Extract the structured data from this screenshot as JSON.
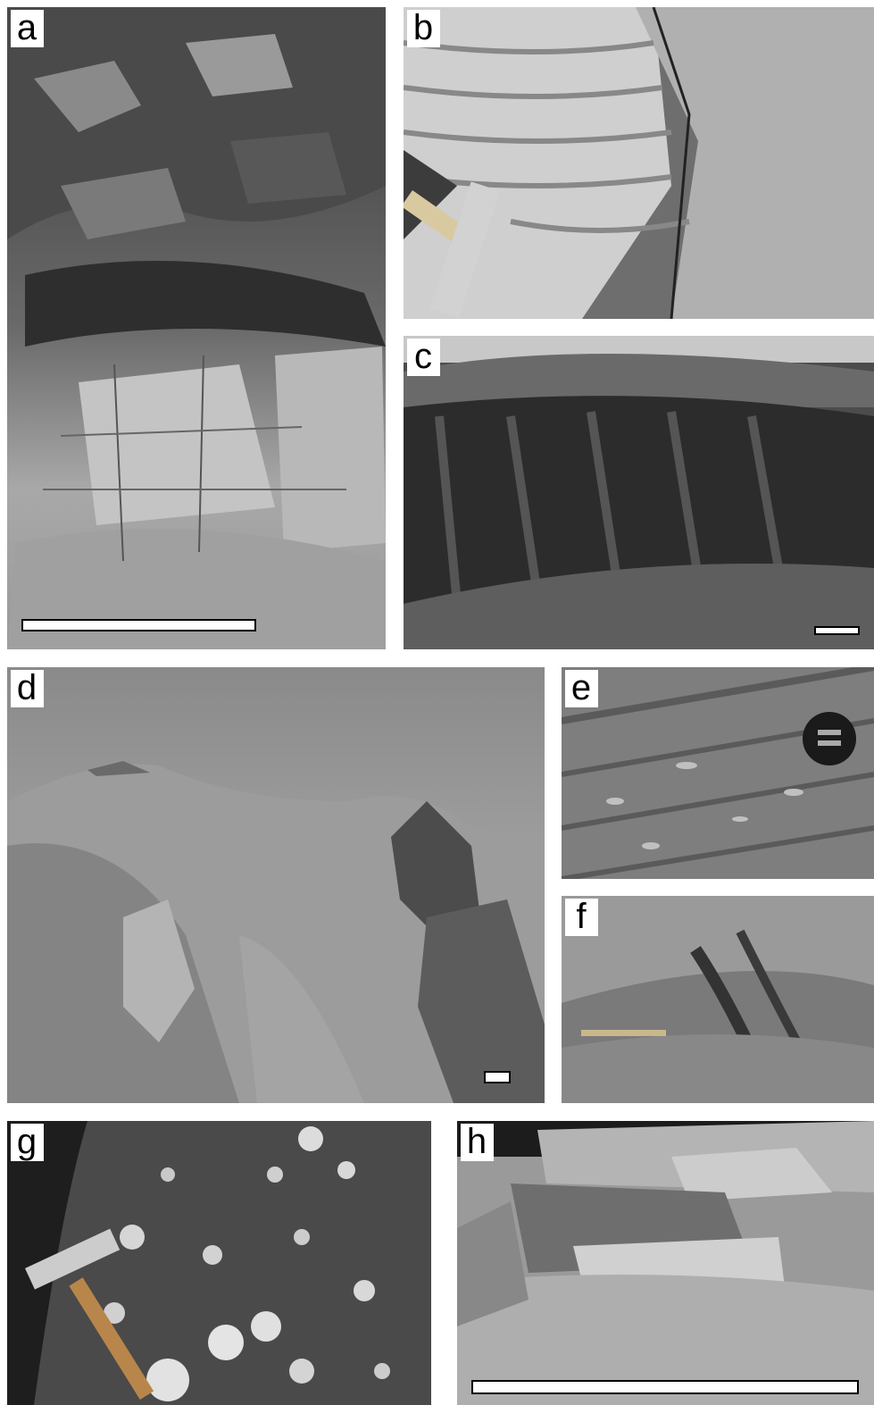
{
  "figure": {
    "panels": [
      {
        "id": "a",
        "label": "a",
        "content": "outcrop-breccia-over-bedded-rock",
        "has_scale_bar": true
      },
      {
        "id": "b",
        "label": "b",
        "content": "banded-rock-with-hammer",
        "has_scale_bar": false
      },
      {
        "id": "c",
        "label": "c",
        "content": "dark-ridge-outcrop",
        "has_scale_bar": true
      },
      {
        "id": "d",
        "label": "d",
        "content": "hillside-landscape-with-ridge",
        "has_scale_bar": true
      },
      {
        "id": "e",
        "label": "e",
        "content": "foliated-rock-with-lens-cap",
        "has_scale_bar": false
      },
      {
        "id": "f",
        "label": "f",
        "content": "sheared-rock-with-pen",
        "has_scale_bar": false
      },
      {
        "id": "g",
        "label": "g",
        "content": "conglomerate-with-hammer",
        "has_scale_bar": false
      },
      {
        "id": "h",
        "label": "h",
        "content": "layered-outcrop-blocks",
        "has_scale_bar": true
      }
    ],
    "colors": {
      "background": "#ffffff",
      "label_bg": "#ffffff",
      "label_text": "#000000",
      "scale_bar": "#ffffff"
    }
  }
}
